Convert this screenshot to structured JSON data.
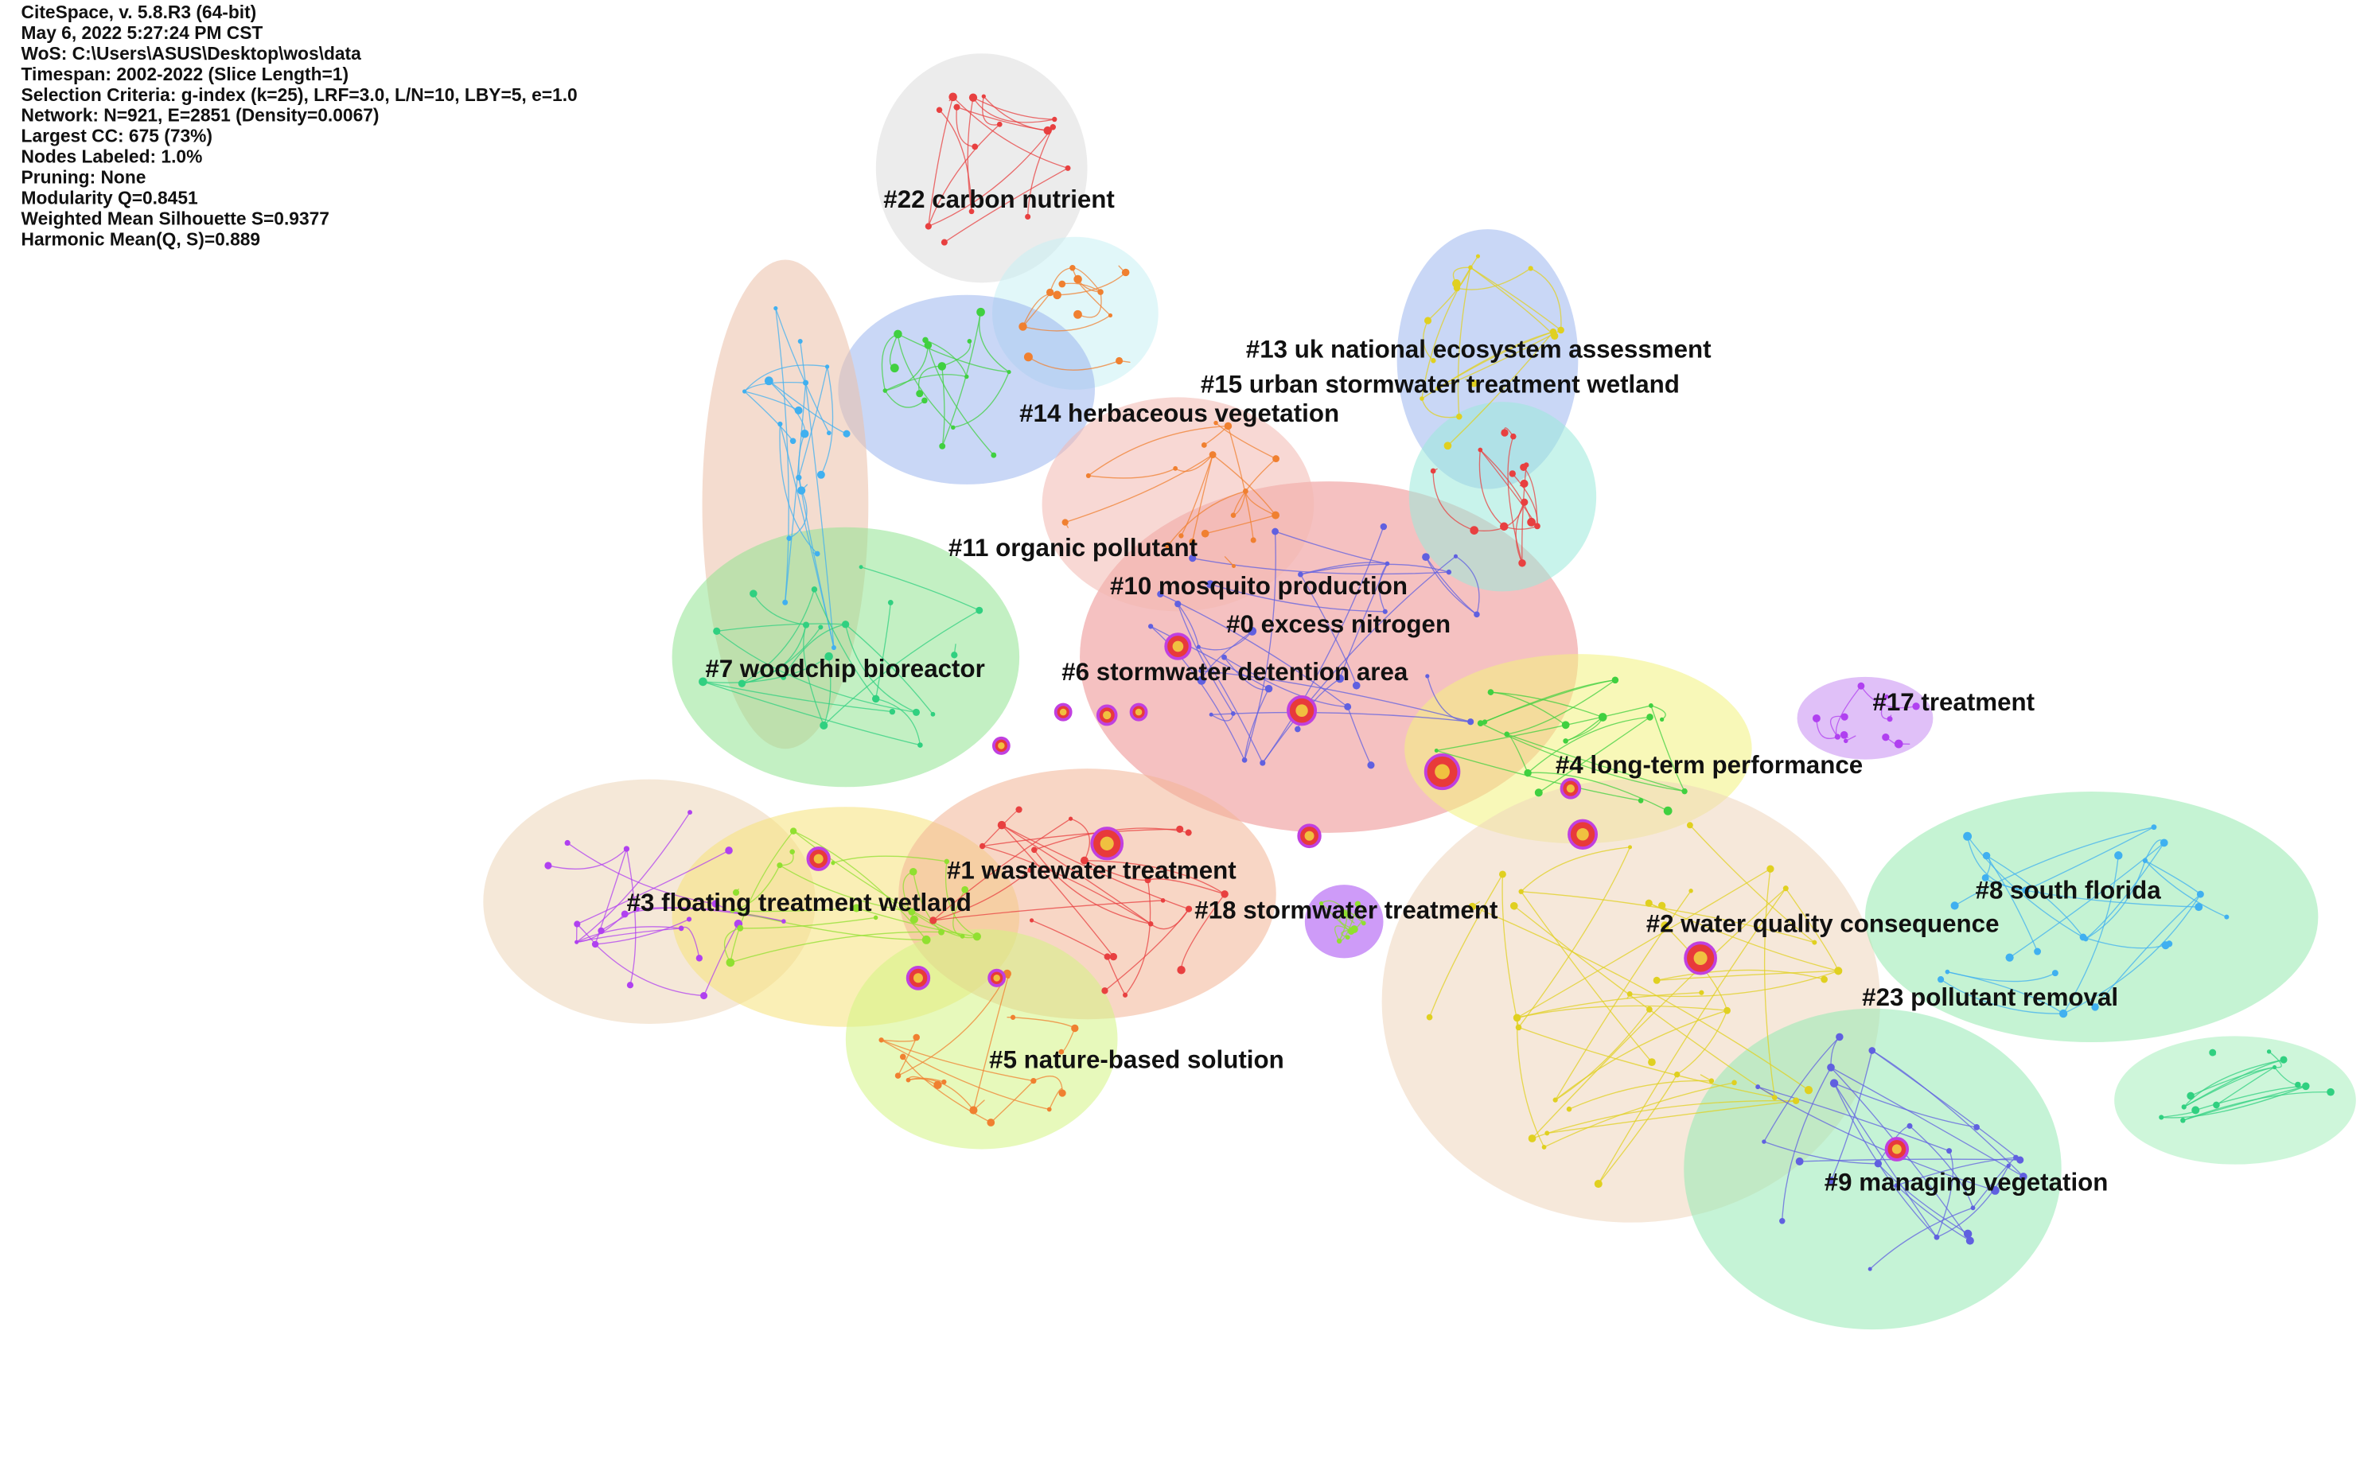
{
  "header": {
    "lines": [
      "CiteSpace, v. 5.8.R3 (64-bit)",
      "May 6, 2022 5:27:24 PM CST",
      "WoS: C:\\Users\\ASUS\\Desktop\\wos\\data",
      "Timespan: 2002-2022 (Slice Length=1)",
      "Selection Criteria: g-index (k=25), LRF=3.0, L/N=10, LBY=5, e=1.0",
      "Network: N=921, E=2851 (Density=0.0067)",
      "Largest CC: 675 (73%)",
      "Nodes Labeled: 1.0%",
      "Pruning: None",
      "Modularity Q=0.8451",
      "Weighted Mean Silhouette S=0.9377",
      "Harmonic Mean(Q, S)=0.889"
    ]
  },
  "clusters": [
    {
      "label": "#22 carbon nutrient"
    },
    {
      "label": "#13 uk national ecosystem assessment"
    },
    {
      "label": "#15 urban stormwater treatment wetland"
    },
    {
      "label": "#14 herbaceous vegetation"
    },
    {
      "label": "#11 organic pollutant"
    },
    {
      "label": "#10 mosquito production"
    },
    {
      "label": "#0 excess nitrogen"
    },
    {
      "label": "#7 woodchip bioreactor"
    },
    {
      "label": "#6 stormwater detention area"
    },
    {
      "label": "#17 treatment"
    },
    {
      "label": "#4 long-term performance"
    },
    {
      "label": "#8 south florida"
    },
    {
      "label": "#1 wastewater treatment"
    },
    {
      "label": "#3 floating treatment wetland"
    },
    {
      "label": "#18 stormwater treatment"
    },
    {
      "label": "#2 water quality consequence"
    },
    {
      "label": "#23 pollutant removal"
    },
    {
      "label": "#5 nature-based solution"
    },
    {
      "label": "#9 managing vegetation"
    }
  ]
}
